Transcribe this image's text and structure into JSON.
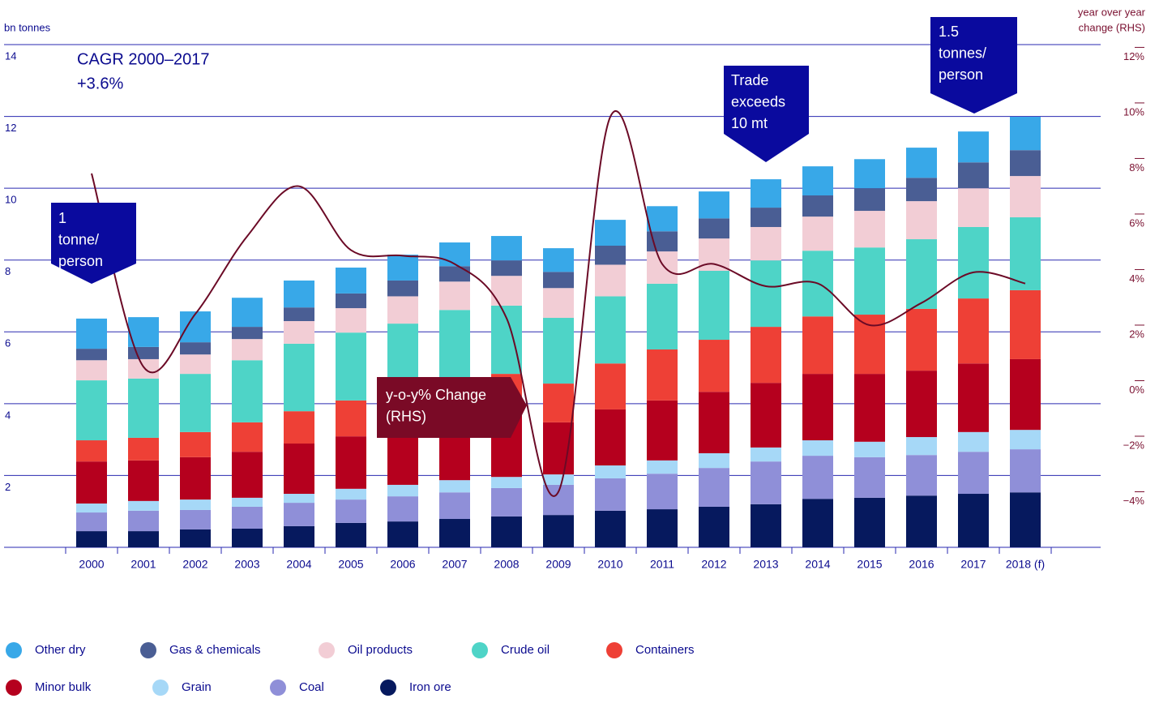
{
  "chart_data": {
    "type": "bar",
    "stacked": true,
    "y_label": "bn tonnes",
    "y2_label": [
      "year over year",
      "change (RHS)"
    ],
    "categories": [
      "2000",
      "2001",
      "2002",
      "2003",
      "2004",
      "2005",
      "2006",
      "2007",
      "2008",
      "2009",
      "2010",
      "2011",
      "2012",
      "2013",
      "2014",
      "2015",
      "2016",
      "2017",
      "2018 (f)"
    ],
    "series": [
      {
        "name": "Other dry",
        "color": "#38a8e8",
        "values": [
          0.84,
          0.83,
          0.86,
          0.81,
          0.75,
          0.72,
          0.72,
          0.66,
          0.68,
          0.66,
          0.72,
          0.7,
          0.75,
          0.79,
          0.81,
          0.81,
          0.84,
          0.86,
          0.93
        ]
      },
      {
        "name": "Gas & chemicals",
        "color": "#4a5e94",
        "values": [
          0.32,
          0.34,
          0.34,
          0.34,
          0.38,
          0.41,
          0.44,
          0.43,
          0.43,
          0.45,
          0.53,
          0.56,
          0.56,
          0.54,
          0.59,
          0.63,
          0.65,
          0.72,
          0.72
        ]
      },
      {
        "name": "Oil products",
        "color": "#f2cdd5",
        "values": [
          0.56,
          0.54,
          0.54,
          0.59,
          0.63,
          0.68,
          0.76,
          0.79,
          0.83,
          0.83,
          0.88,
          0.9,
          0.9,
          0.93,
          0.95,
          1.02,
          1.06,
          1.08,
          1.15
        ]
      },
      {
        "name": "Crude oil",
        "color": "#4ed4c7",
        "values": [
          1.67,
          1.65,
          1.62,
          1.73,
          1.88,
          1.89,
          1.83,
          1.87,
          1.9,
          1.83,
          1.87,
          1.83,
          1.92,
          1.85,
          1.83,
          1.87,
          1.94,
          1.99,
          2.03
        ]
      },
      {
        "name": "Containers",
        "color": "#ee4036",
        "values": [
          0.59,
          0.63,
          0.7,
          0.82,
          0.9,
          1.0,
          1.01,
          1.24,
          0.98,
          1.08,
          1.28,
          1.42,
          1.45,
          1.56,
          1.6,
          1.65,
          1.72,
          1.81,
          1.92
        ]
      },
      {
        "name": "Minor bulk",
        "color": "#b5001e",
        "values": [
          1.17,
          1.13,
          1.18,
          1.28,
          1.4,
          1.46,
          1.65,
          1.63,
          1.89,
          1.45,
          1.56,
          1.67,
          1.71,
          1.8,
          1.85,
          1.89,
          1.85,
          1.91,
          1.97
        ]
      },
      {
        "name": "Grain",
        "color": "#a6d8f7",
        "values": [
          0.25,
          0.27,
          0.29,
          0.25,
          0.25,
          0.3,
          0.32,
          0.34,
          0.31,
          0.29,
          0.36,
          0.37,
          0.41,
          0.39,
          0.43,
          0.43,
          0.5,
          0.55,
          0.54
        ]
      },
      {
        "name": "Coal",
        "color": "#8f8fd8",
        "values": [
          0.52,
          0.57,
          0.54,
          0.61,
          0.65,
          0.65,
          0.7,
          0.74,
          0.79,
          0.84,
          0.9,
          0.99,
          1.08,
          1.19,
          1.2,
          1.13,
          1.13,
          1.17,
          1.2
        ]
      },
      {
        "name": "Iron ore",
        "color": "#06195e",
        "values": [
          0.45,
          0.45,
          0.5,
          0.52,
          0.59,
          0.68,
          0.72,
          0.79,
          0.86,
          0.9,
          1.02,
          1.06,
          1.13,
          1.2,
          1.35,
          1.38,
          1.44,
          1.49,
          1.53
        ]
      },
      {
        "name": "y-o-y% Change (RHS)",
        "type": "line",
        "axis": "y2",
        "color": "#6b0a26",
        "values": [
          7.46,
          0.5,
          2.4,
          5.2,
          7.0,
          4.7,
          4.5,
          4.2,
          2.25,
          -4.0,
          9.5,
          4.2,
          4.2,
          3.4,
          3.5,
          2.0,
          2.8,
          3.9,
          3.5
        ]
      }
    ],
    "ylim": [
      0,
      14
    ],
    "yticks": [
      2,
      4,
      6,
      8,
      10,
      12,
      14
    ],
    "y2lim": [
      -6,
      12.1
    ],
    "y2ticks": [
      {
        "value": -4,
        "label": "−4%"
      },
      {
        "value": -2,
        "label": "−2%"
      },
      {
        "value": 0,
        "label": "0%"
      },
      {
        "value": 2,
        "label": "2%"
      },
      {
        "value": 4,
        "label": "4%"
      },
      {
        "value": 6,
        "label": "6%"
      },
      {
        "value": 8,
        "label": "8%"
      },
      {
        "value": 10,
        "label": "10%"
      },
      {
        "value": 12,
        "label": "12%"
      }
    ],
    "grid": true,
    "annotations": [
      {
        "text": [
          "CAGR 2000–2017",
          "+3.6%"
        ]
      },
      {
        "text": [
          "1",
          "tonne/",
          "person"
        ]
      },
      {
        "text": [
          "Trade",
          "exceeds",
          "10 mt"
        ]
      },
      {
        "text": [
          "1.5",
          "tonnes/",
          "person"
        ]
      },
      {
        "text": [
          "y-o-y% Change",
          "(RHS)"
        ]
      }
    ]
  }
}
